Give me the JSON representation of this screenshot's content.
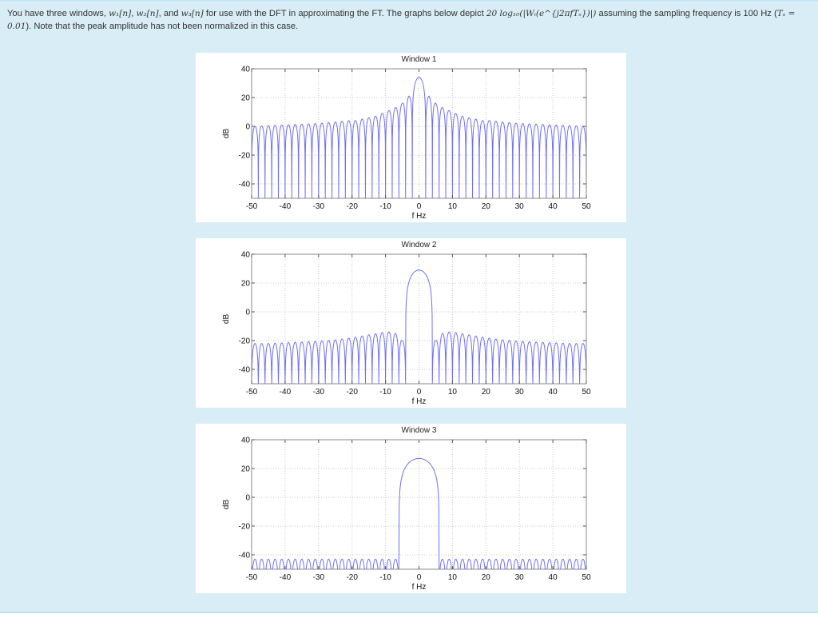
{
  "question": {
    "part1": "You have three windows, ",
    "w1": "w₁[n]",
    "sep1": ", ",
    "w2": "w₂[n]",
    "sep2": ", and ",
    "w3": "w₃[n]",
    "part2": " for use with the DFT in approximating the FT. The graphs below depict ",
    "formula": "20 log₁₀(|Wᵢ(e^{j2πfTₛ})|)",
    "part3": " assuming the sampling frequency is 100 Hz (",
    "ts": "Tₛ = 0.01",
    "part4": "). Note that the peak amplitude has not been normalized in this case."
  },
  "colors": {
    "background": "#d9edf6",
    "panel": "#ffffff",
    "line": "#6f6ff5",
    "grid": "#c8c8c8",
    "axis": "#888888"
  },
  "chart_data": [
    {
      "type": "line",
      "title": "Window 1",
      "xlabel": "f Hz",
      "ylabel": "dB",
      "xlim": [
        -50,
        50
      ],
      "ylim": [
        -50,
        40
      ],
      "xticks": [
        -50,
        -40,
        -30,
        -20,
        -10,
        0,
        10,
        20,
        30,
        40,
        50
      ],
      "yticks": [
        -40,
        -20,
        0,
        20,
        40
      ],
      "grid": true,
      "description": "Rectangular-like window: main lobe peak ~34 dB at 0 Hz, first sidelobes ~21 dB at ±3 Hz, sidelobes decaying to ~0 dB at ±50 Hz, lobe spacing ~2 Hz, deep nulls below -50 dB",
      "peak_db": 34,
      "mainlobe_halfwidth_hz": 2,
      "sidelobe_spacing_hz": 2,
      "sidelobe_peaks": {
        "f": [
          3,
          5,
          7,
          9,
          11,
          13,
          15,
          17,
          19,
          21,
          25,
          30,
          35,
          40,
          45,
          49
        ],
        "db": [
          21,
          16,
          13,
          11,
          9,
          7,
          6,
          5,
          4,
          4,
          3,
          2,
          1.5,
          1,
          0.5,
          0
        ]
      }
    },
    {
      "type": "line",
      "title": "Window 2",
      "xlabel": "f Hz",
      "ylabel": "dB",
      "xlim": [
        -50,
        50
      ],
      "ylim": [
        -50,
        40
      ],
      "xticks": [
        -50,
        -40,
        -30,
        -20,
        -10,
        0,
        10,
        20,
        30,
        40,
        50
      ],
      "yticks": [
        -40,
        -20,
        0,
        20,
        40
      ],
      "grid": true,
      "description": "Hann/Bartlett-like window: main lobe peak ~29 dB at 0 Hz, main lobe half width ~4 Hz, sidelobes ~-14 dB near ±9 Hz decaying to ~-22 dB at ±50 Hz, lobe spacing ~2 Hz",
      "peak_db": 29,
      "mainlobe_halfwidth_hz": 4,
      "sidelobe_spacing_hz": 2,
      "sidelobe_peaks": {
        "f": [
          5,
          7,
          9,
          11,
          15,
          20,
          25,
          30,
          35,
          40,
          45,
          49
        ],
        "db": [
          -20,
          -15,
          -14,
          -14.5,
          -16,
          -18,
          -19.5,
          -20.5,
          -21,
          -21.5,
          -22,
          -22
        ]
      }
    },
    {
      "type": "line",
      "title": "Window 3",
      "xlabel": "f Hz",
      "ylabel": "dB",
      "xlim": [
        -50,
        50
      ],
      "ylim": [
        -50,
        40
      ],
      "xticks": [
        -50,
        -40,
        -30,
        -20,
        -10,
        0,
        10,
        20,
        30,
        40,
        50
      ],
      "yticks": [
        -40,
        -20,
        0,
        20,
        40
      ],
      "grid": true,
      "description": "Hamming/Blackman-like window: main lobe peak ~27 dB at 0 Hz, main lobe half width ~6 Hz, flat sidelobes at ~-43 dB across the band, lobe spacing ~2 Hz",
      "peak_db": 27,
      "mainlobe_halfwidth_hz": 6,
      "sidelobe_spacing_hz": 2,
      "sidelobe_peaks": {
        "f": [
          7,
          10,
          20,
          30,
          40,
          49
        ],
        "db": [
          -43,
          -43,
          -43,
          -43,
          -43,
          -43
        ]
      }
    }
  ]
}
